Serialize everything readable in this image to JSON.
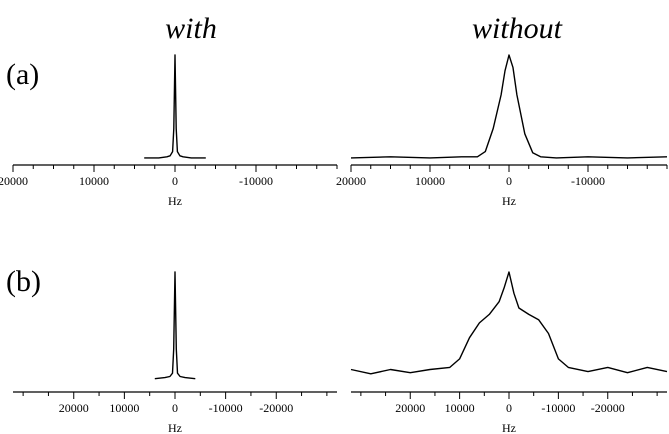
{
  "column_titles": {
    "left": "with",
    "right": "without"
  },
  "row_labels": {
    "a": "(a)",
    "b": "(b)"
  },
  "chart_data": [
    {
      "id": "a-with",
      "type": "line",
      "row": "(a)",
      "column": "with",
      "xlabel": "Hz",
      "xlim": [
        20000,
        -20000
      ],
      "ylim": [
        0,
        1
      ],
      "xticks_major": [
        20000,
        10000,
        0,
        -10000
      ],
      "tick_labels": [
        "20000",
        "10000",
        "0",
        "-10000"
      ],
      "series": [
        {
          "x": [
            3800,
            2000,
            1000,
            600,
            300,
            150,
            0,
            -150,
            -300,
            -600,
            -1000,
            -2000,
            -3800
          ],
          "y": [
            0.02,
            0.02,
            0.03,
            0.04,
            0.08,
            0.3,
            1.0,
            0.3,
            0.08,
            0.04,
            0.03,
            0.02,
            0.02
          ]
        }
      ]
    },
    {
      "id": "a-without",
      "type": "line",
      "row": "(a)",
      "column": "without",
      "xlabel": "Hz",
      "xlim": [
        20000,
        -20000
      ],
      "ylim": [
        0,
        1
      ],
      "xticks_major": [
        20000,
        10000,
        0,
        -10000
      ],
      "tick_labels": [
        "20000",
        "10000",
        "0",
        "-10000"
      ],
      "series": [
        {
          "x": [
            20000,
            15000,
            10000,
            6000,
            4000,
            3000,
            2000,
            1000,
            500,
            0,
            -500,
            -1000,
            -2000,
            -3000,
            -4000,
            -6000,
            -10000,
            -15000,
            -20000
          ],
          "y": [
            0.02,
            0.03,
            0.02,
            0.03,
            0.03,
            0.08,
            0.3,
            0.62,
            0.85,
            1.0,
            0.88,
            0.62,
            0.25,
            0.07,
            0.03,
            0.02,
            0.03,
            0.02,
            0.03
          ]
        }
      ]
    },
    {
      "id": "b-with",
      "type": "line",
      "row": "(b)",
      "column": "with",
      "xlabel": "Hz",
      "xlim": [
        32000,
        -32000
      ],
      "ylim": [
        0,
        1
      ],
      "xticks_major": [
        20000,
        10000,
        0,
        -10000,
        -20000
      ],
      "tick_labels": [
        "20000",
        "10000",
        "0",
        "-10000",
        "-20000"
      ],
      "series": [
        {
          "x": [
            4000,
            2000,
            1000,
            500,
            250,
            0,
            -250,
            -500,
            -1000,
            -2000,
            -4000
          ],
          "y": [
            0.03,
            0.04,
            0.05,
            0.08,
            0.3,
            1.0,
            0.3,
            0.08,
            0.05,
            0.04,
            0.03
          ]
        }
      ]
    },
    {
      "id": "b-without",
      "type": "line",
      "row": "(b)",
      "column": "without",
      "xlabel": "Hz",
      "xlim": [
        32000,
        -32000
      ],
      "ylim": [
        0,
        1
      ],
      "xticks_major": [
        20000,
        10000,
        0,
        -10000,
        -20000
      ],
      "tick_labels": [
        "20000",
        "10000",
        "0",
        "-10000",
        "-20000"
      ],
      "series": [
        {
          "x": [
            32000,
            28000,
            24000,
            20000,
            16000,
            12000,
            10000,
            8000,
            6000,
            4000,
            2000,
            1000,
            0,
            -1000,
            -2000,
            -4000,
            -6000,
            -8000,
            -10000,
            -12000,
            -16000,
            -20000,
            -24000,
            -28000,
            -32000
          ],
          "y": [
            0.08,
            0.04,
            0.08,
            0.05,
            0.08,
            0.1,
            0.18,
            0.38,
            0.52,
            0.6,
            0.72,
            0.85,
            1.0,
            0.8,
            0.66,
            0.6,
            0.55,
            0.42,
            0.18,
            0.1,
            0.06,
            0.1,
            0.05,
            0.1,
            0.06
          ]
        }
      ]
    }
  ]
}
